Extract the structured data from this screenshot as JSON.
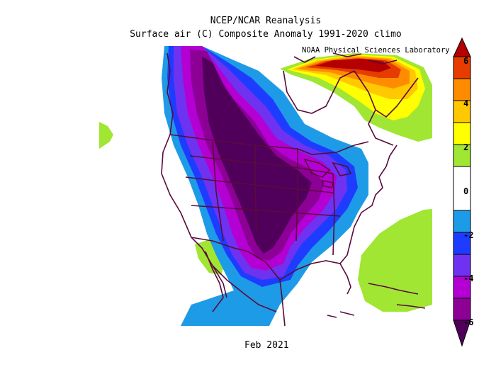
{
  "header": {
    "title": "NCEP/NCAR Reanalysis",
    "subtitle": "Surface air (C) Composite Anomaly 1991-2020 climo",
    "credit": "NOAA Physical Sciences Laboratory"
  },
  "footer": {
    "date": "Feb 2021"
  },
  "colorbar": {
    "labels": [
      "6",
      "4",
      "2",
      "0",
      "-2",
      "-4",
      "-6"
    ],
    "colors": {
      "c_plus5": "#b40000",
      "c_plus4": "#e63c00",
      "c_plus3": "#ff8c00",
      "c_plus2": "#ffc800",
      "c_plus1": "#ffff00",
      "c_plus05": "#a0e632",
      "c_zero": "#ffffff",
      "c_minus05": "#1e9be6",
      "c_minus1": "#1e3cff",
      "c_minus2": "#6e32f0",
      "c_minus3": "#b400d2",
      "c_minus4": "#8c0096",
      "c_minus5": "#50005a"
    }
  },
  "map": {
    "region": "North America",
    "boundary_color": "#5a0a3c"
  }
}
